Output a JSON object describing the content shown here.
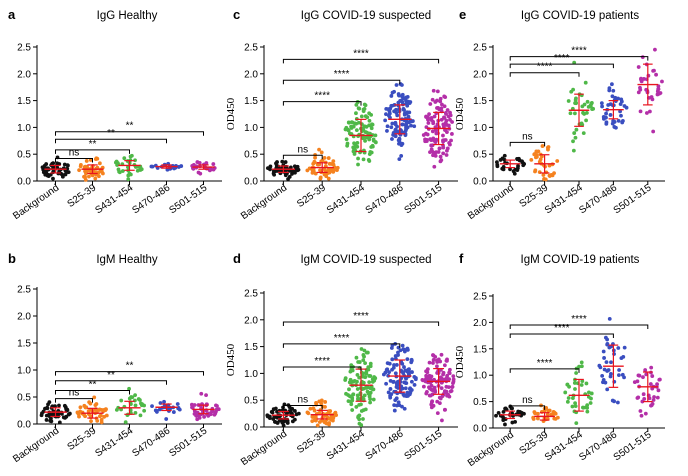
{
  "figure": {
    "colors": {
      "Background": "#111111",
      "S25-39": "#f5821f",
      "S431-454": "#4fb848",
      "S470-486": "#3a4ec0",
      "S501-515": "#b42fa8",
      "summary": "#e8141f"
    }
  },
  "chart_data": [
    {
      "type": "scatter",
      "panel": "a",
      "title": "IgG Healthy",
      "ylabel": "",
      "ylim": [
        0,
        2.5
      ],
      "yticks": [
        "0.0",
        "0.5",
        "1.0",
        "1.5",
        "2.0",
        "2.5"
      ],
      "categories": [
        "Background",
        "S25-39",
        "S431-454",
        "S470-486",
        "S501-515"
      ],
      "series": [
        {
          "mean": 0.22,
          "sd": 0.07,
          "n": 50,
          "spread": 0.09
        },
        {
          "mean": 0.22,
          "sd": 0.08,
          "n": 45,
          "spread": 0.1
        },
        {
          "mean": 0.29,
          "sd": 0.09,
          "n": 30,
          "spread": 0.1
        },
        {
          "mean": 0.27,
          "sd": 0.03,
          "n": 18,
          "spread": 0.03
        },
        {
          "mean": 0.26,
          "sd": 0.04,
          "n": 25,
          "spread": 0.05
        }
      ],
      "comparisons": [
        {
          "to": "S25-39",
          "label": "ns",
          "y": 0.42
        },
        {
          "to": "S431-454",
          "label": "**",
          "y": 0.58
        },
        {
          "to": "S470-486",
          "label": "**",
          "y": 0.78
        },
        {
          "to": "S501-515",
          "label": "**",
          "y": 0.92
        }
      ]
    },
    {
      "type": "scatter",
      "panel": "c",
      "title": "IgG COVID-19 suspected",
      "ylabel": "OD450",
      "ylim": [
        0,
        2.5
      ],
      "yticks": [
        "0.0",
        "0.5",
        "1.0",
        "1.5",
        "2.0",
        "2.5"
      ],
      "categories": [
        "Background",
        "S25-39",
        "S431-454",
        "S470-486",
        "S501-515"
      ],
      "series": [
        {
          "mean": 0.22,
          "sd": 0.06,
          "n": 60,
          "spread": 0.08
        },
        {
          "mean": 0.25,
          "sd": 0.09,
          "n": 50,
          "spread": 0.12
        },
        {
          "mean": 0.85,
          "sd": 0.3,
          "n": 100,
          "spread": 0.3
        },
        {
          "mean": 1.15,
          "sd": 0.27,
          "n": 110,
          "spread": 0.27
        },
        {
          "mean": 0.98,
          "sd": 0.3,
          "n": 110,
          "spread": 0.32
        }
      ],
      "comparisons": [
        {
          "to": "S25-39",
          "label": "ns",
          "y": 0.48
        },
        {
          "to": "S431-454",
          "label": "****",
          "y": 1.48
        },
        {
          "to": "S470-486",
          "label": "****",
          "y": 1.88
        },
        {
          "to": "S501-515",
          "label": "****",
          "y": 2.27
        }
      ]
    },
    {
      "type": "scatter",
      "panel": "e",
      "title": "IgG COVID-19 patients",
      "ylabel": "OD450",
      "ylim": [
        0,
        2.5
      ],
      "yticks": [
        "0.0",
        "0.5",
        "1.0",
        "1.5",
        "2.0",
        "2.5"
      ],
      "categories": [
        "Background",
        "S25-39",
        "S431-454",
        "S470-486",
        "S501-515"
      ],
      "series": [
        {
          "mean": 0.32,
          "sd": 0.07,
          "n": 28,
          "spread": 0.08
        },
        {
          "mean": 0.32,
          "sd": 0.17,
          "n": 35,
          "spread": 0.17
        },
        {
          "mean": 1.32,
          "sd": 0.3,
          "n": 38,
          "spread": 0.3
        },
        {
          "mean": 1.33,
          "sd": 0.17,
          "n": 38,
          "spread": 0.18
        },
        {
          "mean": 1.8,
          "sd": 0.38,
          "n": 35,
          "spread": 0.38
        }
      ],
      "comparisons": [
        {
          "to": "S25-39",
          "label": "ns",
          "y": 0.72
        },
        {
          "to": "S431-454",
          "label": "****",
          "y": 2.02
        },
        {
          "to": "S470-486",
          "label": "****",
          "y": 2.18
        },
        {
          "to": "S501-515",
          "label": "****",
          "y": 2.32
        }
      ]
    },
    {
      "type": "scatter",
      "panel": "b",
      "title": "IgM Healthy",
      "ylabel": "",
      "ylim": [
        0,
        2.5
      ],
      "yticks": [
        "0.0",
        "0.5",
        "1.0",
        "1.5",
        "2.0",
        "2.5"
      ],
      "categories": [
        "Background",
        "S25-39",
        "S431-454",
        "S470-486",
        "S501-515"
      ],
      "series": [
        {
          "mean": 0.22,
          "sd": 0.08,
          "n": 50,
          "spread": 0.1
        },
        {
          "mean": 0.2,
          "sd": 0.09,
          "n": 45,
          "spread": 0.12
        },
        {
          "mean": 0.3,
          "sd": 0.12,
          "n": 28,
          "spread": 0.13
        },
        {
          "mean": 0.31,
          "sd": 0.06,
          "n": 22,
          "spread": 0.07
        },
        {
          "mean": 0.27,
          "sd": 0.08,
          "n": 45,
          "spread": 0.1
        }
      ],
      "comparisons": [
        {
          "to": "S25-39",
          "label": "ns",
          "y": 0.47
        },
        {
          "to": "S431-454",
          "label": "**",
          "y": 0.62
        },
        {
          "to": "S470-486",
          "label": "**",
          "y": 0.8
        },
        {
          "to": "S501-515",
          "label": "**",
          "y": 0.97
        }
      ]
    },
    {
      "type": "scatter",
      "panel": "d",
      "title": "IgM COVID-19 suspected",
      "ylabel": "OD450",
      "ylim": [
        0,
        2.5
      ],
      "yticks": [
        "0.0",
        "0.5",
        "1.0",
        "1.5",
        "2.0",
        "2.5"
      ],
      "categories": [
        "Background",
        "S25-39",
        "S431-454",
        "S470-486",
        "S501-515"
      ],
      "series": [
        {
          "mean": 0.22,
          "sd": 0.07,
          "n": 60,
          "spread": 0.09
        },
        {
          "mean": 0.23,
          "sd": 0.08,
          "n": 55,
          "spread": 0.12
        },
        {
          "mean": 0.78,
          "sd": 0.3,
          "n": 110,
          "spread": 0.32
        },
        {
          "mean": 0.95,
          "sd": 0.3,
          "n": 110,
          "spread": 0.3
        },
        {
          "mean": 0.85,
          "sd": 0.24,
          "n": 110,
          "spread": 0.25
        }
      ],
      "comparisons": [
        {
          "to": "S25-39",
          "label": "ns",
          "y": 0.4
        },
        {
          "to": "S431-454",
          "label": "****",
          "y": 1.12
        },
        {
          "to": "S470-486",
          "label": "****",
          "y": 1.55
        },
        {
          "to": "S501-515",
          "label": "****",
          "y": 1.96
        }
      ]
    },
    {
      "type": "scatter",
      "panel": "f",
      "title": "IgM COVID-19 patients",
      "ylabel": "OD450",
      "ylim": [
        0,
        2.5
      ],
      "yticks": [
        "0.0",
        "0.5",
        "1.0",
        "1.5",
        "2.0",
        "2.5"
      ],
      "categories": [
        "Background",
        "S25-39",
        "S431-454",
        "S470-486",
        "S501-515"
      ],
      "series": [
        {
          "mean": 0.25,
          "sd": 0.07,
          "n": 28,
          "spread": 0.08
        },
        {
          "mean": 0.22,
          "sd": 0.07,
          "n": 28,
          "spread": 0.08
        },
        {
          "mean": 0.62,
          "sd": 0.3,
          "n": 38,
          "spread": 0.32
        },
        {
          "mean": 1.17,
          "sd": 0.4,
          "n": 38,
          "spread": 0.4
        },
        {
          "mean": 0.78,
          "sd": 0.28,
          "n": 35,
          "spread": 0.28
        }
      ],
      "comparisons": [
        {
          "to": "S25-39",
          "label": "ns",
          "y": 0.42
        },
        {
          "to": "S431-454",
          "label": "****",
          "y": 1.12
        },
        {
          "to": "S470-486",
          "label": "****",
          "y": 1.78
        },
        {
          "to": "S501-515",
          "label": "****",
          "y": 1.95
        }
      ]
    }
  ]
}
